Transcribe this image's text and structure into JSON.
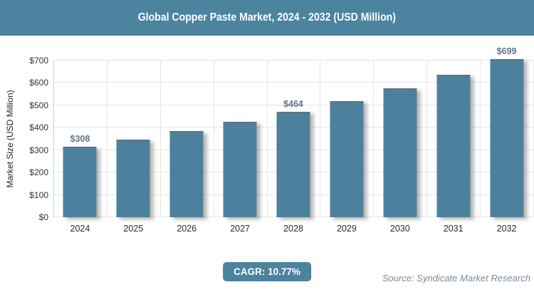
{
  "header": {
    "title": "Global Copper Paste Market, 2024 - 2032 (USD Million)"
  },
  "chart_data": {
    "type": "bar",
    "title": "Global Copper Paste Market, 2024 - 2032 (USD Million)",
    "categories": [
      "2024",
      "2025",
      "2026",
      "2027",
      "2028",
      "2029",
      "2030",
      "2031",
      "2032"
    ],
    "values": [
      308,
      341,
      378,
      419,
      464,
      513,
      569,
      630,
      699
    ],
    "data_labels": [
      "$308",
      null,
      null,
      null,
      "$464",
      null,
      null,
      null,
      "$699"
    ],
    "xlabel": "",
    "ylabel": "Market Size (USD Million)",
    "ylim": [
      0,
      700
    ],
    "y_ticks": [
      0,
      100,
      200,
      300,
      400,
      500,
      600,
      700
    ],
    "y_tick_labels": [
      "$0",
      "$100",
      "$200",
      "$300",
      "$400",
      "$500",
      "$600",
      "$700"
    ],
    "grid": true,
    "legend": false
  },
  "footer": {
    "cagr_label": "CAGR: 10.77%",
    "source": "Source: Syndicate Market Research"
  },
  "colors": {
    "header_bg": "#4c839e",
    "bar": "#4c819e",
    "badge_bg": "#4c839e",
    "data_label": "#5d7386",
    "grid_line": "#e5e5e5",
    "axis_line": "#c9cccd",
    "tick_text": "#333333",
    "source_text": "#7b8b98"
  }
}
